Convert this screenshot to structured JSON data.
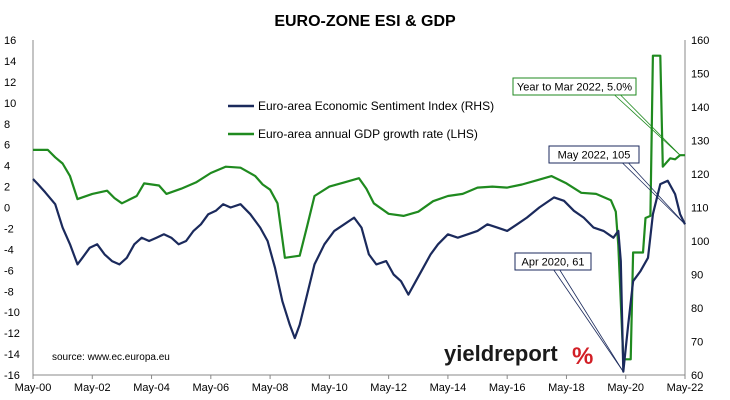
{
  "chart_data": {
    "type": "line",
    "title": "EURO-ZONE ESI & GDP",
    "x_range": [
      "2000-05",
      "2022-05"
    ],
    "x_ticks": [
      "May-00",
      "May-02",
      "May-04",
      "May-06",
      "May-08",
      "May-10",
      "May-12",
      "May-14",
      "May-16",
      "May-18",
      "May-20",
      "May-22"
    ],
    "left_axis": {
      "min": -16,
      "max": 16,
      "ticks": [
        "-16",
        "-14",
        "-12",
        "-10",
        "-8",
        "-6",
        "-4",
        "-2",
        "0",
        "2",
        "4",
        "6",
        "8",
        "10",
        "12",
        "14",
        "16"
      ]
    },
    "right_axis": {
      "min": 60,
      "max": 160,
      "ticks": [
        "60",
        "70",
        "80",
        "90",
        "100",
        "110",
        "120",
        "130",
        "140",
        "150",
        "160"
      ]
    },
    "grid": false,
    "legend_placement": "upper-center",
    "series": [
      {
        "name": "Euro-area Economic Sentiment Index (RHS)",
        "axis": "right",
        "color": "#1b2a5c",
        "points": [
          [
            "2000-05",
            118.5
          ],
          [
            "2000-07",
            117
          ],
          [
            "2000-10",
            114.5
          ],
          [
            "2001-02",
            111
          ],
          [
            "2001-05",
            104
          ],
          [
            "2001-08",
            99
          ],
          [
            "2001-11",
            93
          ],
          [
            "2002-01",
            95
          ],
          [
            "2002-04",
            98
          ],
          [
            "2002-07",
            99
          ],
          [
            "2002-10",
            96
          ],
          [
            "2003-01",
            94
          ],
          [
            "2003-04",
            93
          ],
          [
            "2003-07",
            95
          ],
          [
            "2003-10",
            99
          ],
          [
            "2004-01",
            101
          ],
          [
            "2004-04",
            100
          ],
          [
            "2004-07",
            101
          ],
          [
            "2004-10",
            102
          ],
          [
            "2005-01",
            101
          ],
          [
            "2005-04",
            99
          ],
          [
            "2005-07",
            100
          ],
          [
            "2005-10",
            103
          ],
          [
            "2006-01",
            105
          ],
          [
            "2006-04",
            108
          ],
          [
            "2006-07",
            109
          ],
          [
            "2006-10",
            111
          ],
          [
            "2007-01",
            110
          ],
          [
            "2007-05",
            111
          ],
          [
            "2007-09",
            108
          ],
          [
            "2008-01",
            104
          ],
          [
            "2008-04",
            100
          ],
          [
            "2008-07",
            92
          ],
          [
            "2008-10",
            82
          ],
          [
            "2009-01",
            75
          ],
          [
            "2009-03",
            71
          ],
          [
            "2009-05",
            75
          ],
          [
            "2009-08",
            84
          ],
          [
            "2009-11",
            93
          ],
          [
            "2010-03",
            99
          ],
          [
            "2010-07",
            103
          ],
          [
            "2010-11",
            105
          ],
          [
            "2011-03",
            107
          ],
          [
            "2011-06",
            104
          ],
          [
            "2011-09",
            96
          ],
          [
            "2011-12",
            93
          ],
          [
            "2012-04",
            94
          ],
          [
            "2012-07",
            90
          ],
          [
            "2012-10",
            88
          ],
          [
            "2013-01",
            84
          ],
          [
            "2013-04",
            88
          ],
          [
            "2013-07",
            92
          ],
          [
            "2013-10",
            96
          ],
          [
            "2014-01",
            99
          ],
          [
            "2014-05",
            102
          ],
          [
            "2014-09",
            101
          ],
          [
            "2015-01",
            102
          ],
          [
            "2015-05",
            103
          ],
          [
            "2015-09",
            105
          ],
          [
            "2016-01",
            104
          ],
          [
            "2016-05",
            103
          ],
          [
            "2016-09",
            105
          ],
          [
            "2017-01",
            107
          ],
          [
            "2017-06",
            110
          ],
          [
            "2017-12",
            113
          ],
          [
            "2018-04",
            112
          ],
          [
            "2018-08",
            109
          ],
          [
            "2018-12",
            107
          ],
          [
            "2019-04",
            104
          ],
          [
            "2019-08",
            103
          ],
          [
            "2019-12",
            101
          ],
          [
            "2020-02",
            103
          ],
          [
            "2020-03",
            94
          ],
          [
            "2020-04",
            61
          ],
          [
            "2020-06",
            75
          ],
          [
            "2020-08",
            88
          ],
          [
            "2020-11",
            91
          ],
          [
            "2021-02",
            95
          ],
          [
            "2021-04",
            108
          ],
          [
            "2021-07",
            117
          ],
          [
            "2021-10",
            118
          ],
          [
            "2022-01",
            114
          ],
          [
            "2022-03",
            108
          ],
          [
            "2022-05",
            105
          ]
        ]
      },
      {
        "name": "Euro-area annual GDP growth rate (LHS)",
        "axis": "left",
        "color": "#1f8a1f",
        "points": [
          [
            "2000-05",
            5.5
          ],
          [
            "2000-11",
            5.5
          ],
          [
            "2001-02",
            4.8
          ],
          [
            "2001-05",
            4.2
          ],
          [
            "2001-08",
            3.0
          ],
          [
            "2001-11",
            0.8
          ],
          [
            "2002-05",
            1.3
          ],
          [
            "2002-11",
            1.6
          ],
          [
            "2003-02",
            0.9
          ],
          [
            "2003-05",
            0.4
          ],
          [
            "2003-11",
            1.1
          ],
          [
            "2004-02",
            2.3
          ],
          [
            "2004-08",
            2.1
          ],
          [
            "2004-11",
            1.3
          ],
          [
            "2005-05",
            1.8
          ],
          [
            "2005-11",
            2.4
          ],
          [
            "2006-05",
            3.3
          ],
          [
            "2006-11",
            3.9
          ],
          [
            "2007-05",
            3.8
          ],
          [
            "2007-11",
            3.0
          ],
          [
            "2008-02",
            2.2
          ],
          [
            "2008-05",
            1.7
          ],
          [
            "2008-08",
            0.4
          ],
          [
            "2008-11",
            -4.8
          ],
          [
            "2009-05",
            -4.6
          ],
          [
            "2009-08",
            -1.8
          ],
          [
            "2009-11",
            1.1
          ],
          [
            "2010-05",
            2.0
          ],
          [
            "2010-11",
            2.4
          ],
          [
            "2011-05",
            2.8
          ],
          [
            "2011-08",
            1.8
          ],
          [
            "2011-11",
            0.4
          ],
          [
            "2012-05",
            -0.6
          ],
          [
            "2012-11",
            -0.8
          ],
          [
            "2013-05",
            -0.4
          ],
          [
            "2013-11",
            0.6
          ],
          [
            "2014-05",
            1.1
          ],
          [
            "2014-11",
            1.3
          ],
          [
            "2015-05",
            1.9
          ],
          [
            "2015-11",
            2.0
          ],
          [
            "2016-05",
            1.9
          ],
          [
            "2016-11",
            2.2
          ],
          [
            "2017-05",
            2.6
          ],
          [
            "2017-11",
            3.0
          ],
          [
            "2018-05",
            2.3
          ],
          [
            "2018-11",
            1.4
          ],
          [
            "2019-05",
            1.3
          ],
          [
            "2019-11",
            0.7
          ],
          [
            "2020-01",
            -0.4
          ],
          [
            "2020-02",
            -3.6
          ],
          [
            "2020-04",
            -14.5
          ],
          [
            "2020-07",
            -14.5
          ],
          [
            "2020-08",
            -4.3
          ],
          [
            "2020-12",
            -4.3
          ],
          [
            "2021-01",
            -1.0
          ],
          [
            "2021-03",
            -0.8
          ],
          [
            "2021-04",
            14.5
          ],
          [
            "2021-07",
            14.5
          ],
          [
            "2021-08",
            3.9
          ],
          [
            "2021-11",
            4.7
          ],
          [
            "2022-01",
            4.6
          ],
          [
            "2022-03",
            5.0
          ],
          [
            "2022-05",
            5.0
          ]
        ]
      }
    ],
    "annotations": [
      {
        "label": "Year to Mar 2022, 5.0%",
        "point": [
          "2022-03",
          5.0
        ],
        "axis": "left",
        "box_color": "#1f8a1f"
      },
      {
        "label": "May 2022, 105",
        "point": [
          "2022-05",
          105
        ],
        "axis": "right",
        "box_color": "#1b2a5c"
      },
      {
        "label": "Apr 2020, 61",
        "point": [
          "2020-04",
          61
        ],
        "axis": "right",
        "box_color": "#1b2a5c"
      }
    ],
    "source": "source: www.ec.europa.eu"
  },
  "logo": {
    "text": "yieldreport",
    "symbol": "%"
  }
}
